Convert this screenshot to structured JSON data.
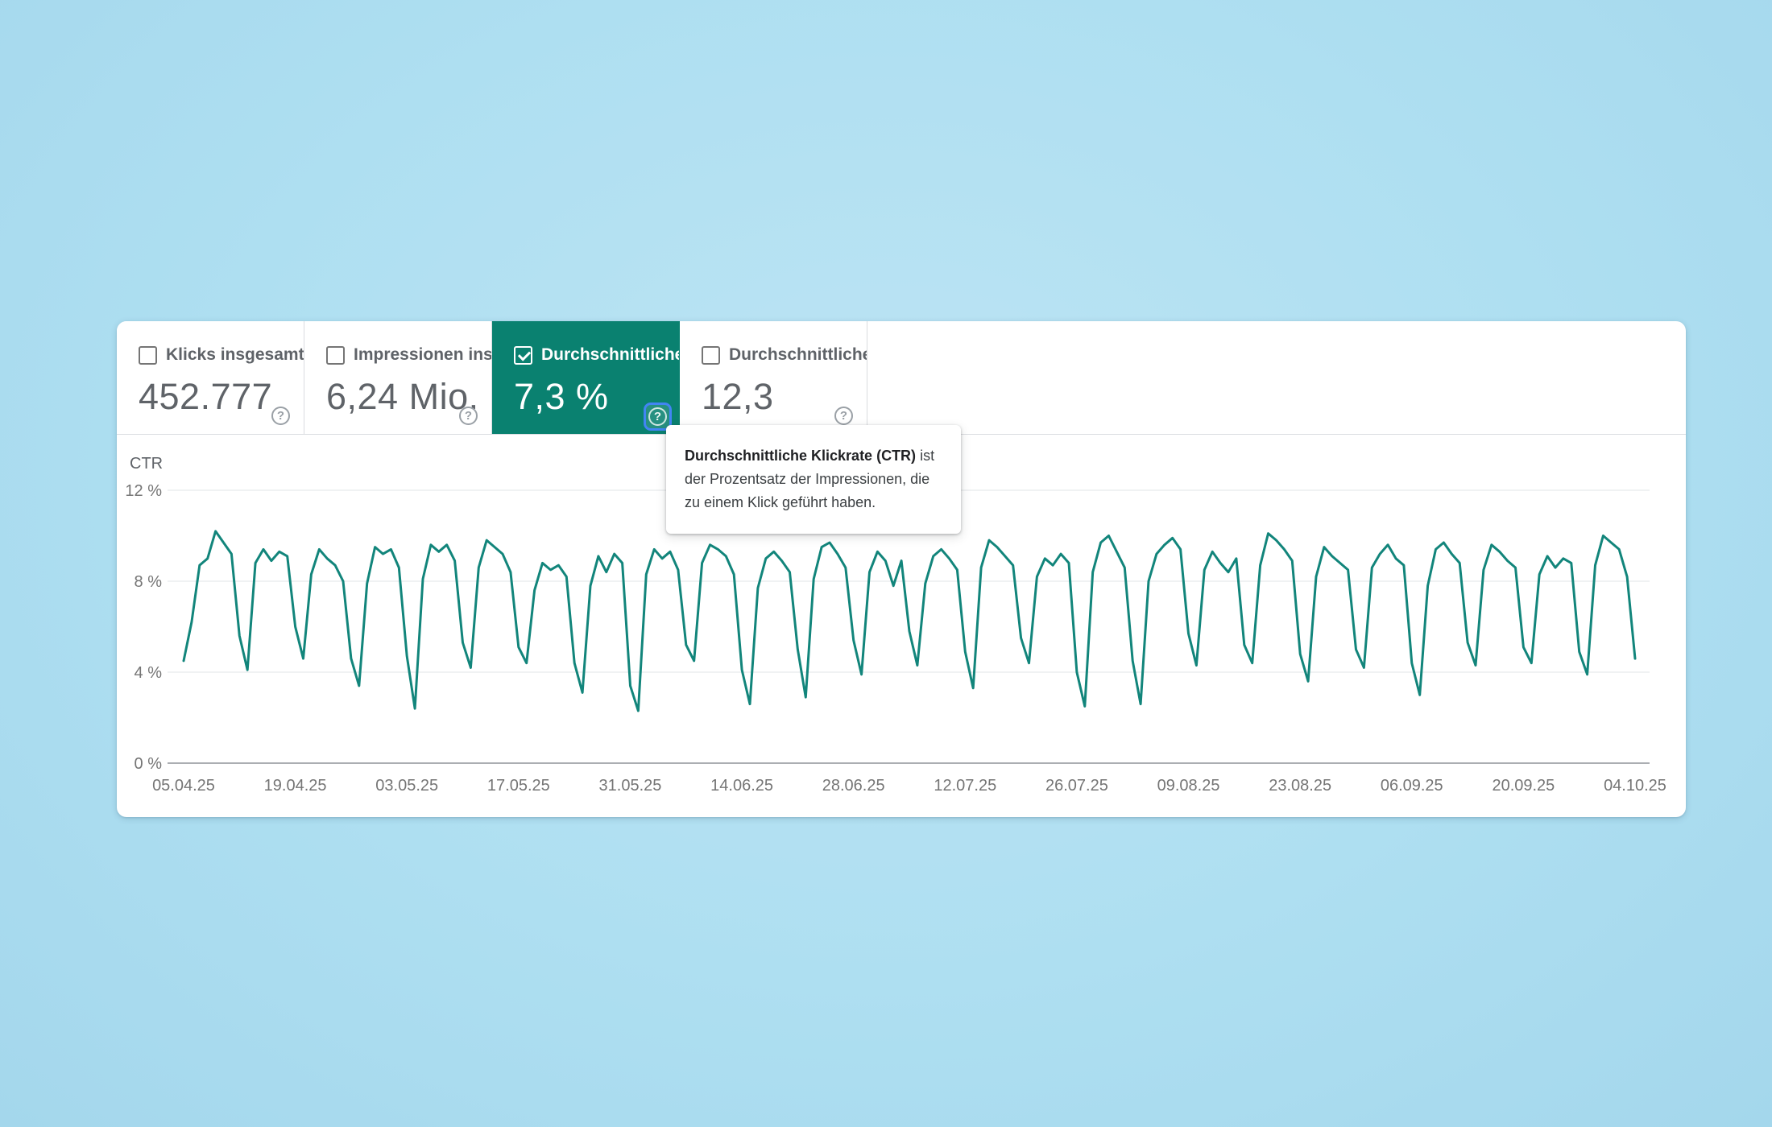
{
  "accent_colors": {
    "selected_tile_background": "#0a8170",
    "line_color": "#12857b",
    "focus_ring_blue": "#4285f4",
    "page_background_blue": "#aedff1"
  },
  "tiles": [
    {
      "label": "Klicks insgesamt",
      "value": "452.777",
      "checked": false,
      "selected": false
    },
    {
      "label": "Impressionen ins…",
      "value": "6,24 Mio.",
      "checked": false,
      "selected": false
    },
    {
      "label": "Durchschnittliche …",
      "value": "7,3 %",
      "checked": true,
      "selected": true
    },
    {
      "label": "Durchschnittliche …",
      "value": "12,3",
      "checked": false,
      "selected": false
    }
  ],
  "tooltip": {
    "bold": "Durchschnittliche Klickrate (CTR)",
    "rest": " ist der Prozentsatz der Impressionen, die zu einem Klick geführt haben."
  },
  "chart_data": {
    "type": "line",
    "title": "CTR",
    "ylabel": "CTR (%)",
    "ylim": [
      0,
      12
    ],
    "grid": true,
    "frequency": "daily",
    "date_range": [
      "05.04.25",
      "04.10.25"
    ],
    "y_ticks": [
      {
        "label": "12 %",
        "value": 12
      },
      {
        "label": "8 %",
        "value": 8
      },
      {
        "label": "4 %",
        "value": 4
      },
      {
        "label": "0 %",
        "value": 0
      }
    ],
    "x_tick_interval_days": 14,
    "x_tick_labels": [
      "05.04.25",
      "19.04.25",
      "03.05.25",
      "17.05.25",
      "31.05.25",
      "14.06.25",
      "28.06.25",
      "12.07.25",
      "26.07.25",
      "09.08.25",
      "23.08.25",
      "06.09.25",
      "20.09.25",
      "04.10.25"
    ],
    "series": [
      {
        "name": "CTR",
        "color": "#12857b",
        "average_label": "7,3 %",
        "values": [
          4.5,
          6.2,
          8.7,
          9.0,
          10.2,
          9.7,
          9.2,
          5.6,
          4.1,
          8.8,
          9.4,
          8.9,
          9.3,
          9.1,
          6.0,
          4.6,
          8.3,
          9.4,
          9.0,
          8.7,
          8.0,
          4.6,
          3.4,
          7.9,
          9.5,
          9.2,
          9.4,
          8.6,
          4.7,
          2.4,
          8.1,
          9.6,
          9.3,
          9.6,
          8.9,
          5.3,
          4.2,
          8.6,
          9.8,
          9.5,
          9.2,
          8.4,
          5.1,
          4.4,
          7.6,
          8.8,
          8.5,
          8.7,
          8.2,
          4.4,
          3.1,
          7.8,
          9.1,
          8.4,
          9.2,
          8.8,
          3.4,
          2.3,
          8.3,
          9.4,
          9.0,
          9.3,
          8.5,
          5.2,
          4.5,
          8.8,
          9.6,
          9.4,
          9.1,
          8.3,
          4.1,
          2.6,
          7.7,
          9.0,
          9.3,
          8.9,
          8.4,
          5.0,
          2.9,
          8.1,
          9.5,
          9.7,
          9.2,
          8.6,
          5.4,
          3.9,
          8.4,
          9.3,
          8.9,
          7.8,
          8.9,
          5.8,
          4.3,
          7.9,
          9.1,
          9.4,
          9.0,
          8.5,
          4.9,
          3.3,
          8.6,
          9.8,
          9.5,
          9.1,
          8.7,
          5.5,
          4.4,
          8.2,
          9.0,
          8.7,
          9.2,
          8.8,
          4.0,
          2.5,
          8.4,
          9.7,
          10.0,
          9.3,
          8.6,
          4.5,
          2.6,
          8.0,
          9.2,
          9.6,
          9.9,
          9.4,
          5.7,
          4.3,
          8.5,
          9.3,
          8.8,
          8.4,
          9.0,
          5.2,
          4.4,
          8.7,
          10.1,
          9.8,
          9.4,
          8.9,
          4.8,
          3.6,
          8.2,
          9.5,
          9.1,
          8.8,
          8.5,
          5.0,
          4.2,
          8.6,
          9.2,
          9.6,
          9.0,
          8.7,
          4.4,
          3.0,
          7.8,
          9.4,
          9.7,
          9.2,
          8.8,
          5.3,
          4.3,
          8.5,
          9.6,
          9.3,
          8.9,
          8.6,
          5.1,
          4.4,
          8.3,
          9.1,
          8.6,
          9.0,
          8.8,
          4.9,
          3.9,
          8.7,
          10.0,
          9.7,
          9.4,
          8.2,
          4.6
        ]
      }
    ]
  }
}
